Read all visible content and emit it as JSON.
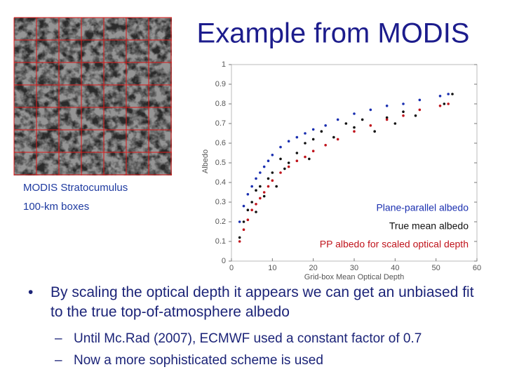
{
  "title": "Example from MODIS",
  "image_caption": [
    "MODIS Stratocumulus",
    "100-km boxes"
  ],
  "bullets": [
    {
      "text": "By scaling the optical depth it appears we can get an unbiased fit to the true top-of-atmosphere albedo",
      "sub": [
        "Until Mc.Rad (2007), ECMWF used a constant factor of 0.7",
        "Now a more sophisticated scheme is used"
      ]
    }
  ],
  "chart_data": {
    "type": "scatter",
    "xlabel": "Grid-box Mean Optical Depth",
    "ylabel": "Albedo",
    "xlim": [
      0,
      60
    ],
    "xticks": [
      0,
      10,
      20,
      30,
      40,
      50,
      60
    ],
    "ylim": [
      0,
      1
    ],
    "yticks": [
      0,
      0.1,
      0.2,
      0.3,
      0.4,
      0.5,
      0.6,
      0.7,
      0.8,
      0.9,
      1
    ],
    "grid": false,
    "series": [
      {
        "name": "Plane-parallel albedo",
        "color": "#1a2fb0",
        "x": [
          2,
          3,
          4,
          5,
          6,
          7,
          8,
          9,
          10,
          12,
          14,
          16,
          18,
          20,
          23,
          26,
          30,
          34,
          38,
          42,
          46,
          51,
          53
        ],
        "values": [
          0.2,
          0.28,
          0.34,
          0.38,
          0.42,
          0.45,
          0.48,
          0.51,
          0.54,
          0.58,
          0.61,
          0.63,
          0.65,
          0.67,
          0.69,
          0.72,
          0.75,
          0.77,
          0.79,
          0.8,
          0.82,
          0.84,
          0.85
        ]
      },
      {
        "name": "True mean albedo",
        "color": "#111111",
        "x": [
          2,
          3,
          4,
          5,
          6,
          6,
          7,
          8,
          9,
          10,
          11,
          12,
          13,
          14,
          16,
          18,
          19,
          20,
          22,
          25,
          28,
          30,
          32,
          35,
          38,
          40,
          42,
          45,
          52,
          54
        ],
        "values": [
          0.12,
          0.2,
          0.26,
          0.3,
          0.36,
          0.25,
          0.38,
          0.33,
          0.42,
          0.45,
          0.38,
          0.52,
          0.47,
          0.5,
          0.55,
          0.6,
          0.52,
          0.62,
          0.66,
          0.63,
          0.7,
          0.68,
          0.72,
          0.66,
          0.73,
          0.7,
          0.76,
          0.74,
          0.8,
          0.85
        ]
      },
      {
        "name": "PP albedo for scaled optical depth",
        "color": "#c0141c",
        "x": [
          2,
          3,
          4,
          5,
          6,
          7,
          8,
          9,
          10,
          12,
          14,
          16,
          18,
          20,
          23,
          26,
          30,
          34,
          38,
          42,
          46,
          51,
          53
        ],
        "values": [
          0.1,
          0.16,
          0.21,
          0.26,
          0.29,
          0.32,
          0.35,
          0.38,
          0.41,
          0.45,
          0.48,
          0.51,
          0.53,
          0.56,
          0.59,
          0.62,
          0.66,
          0.69,
          0.72,
          0.74,
          0.77,
          0.79,
          0.8
        ]
      }
    ]
  }
}
